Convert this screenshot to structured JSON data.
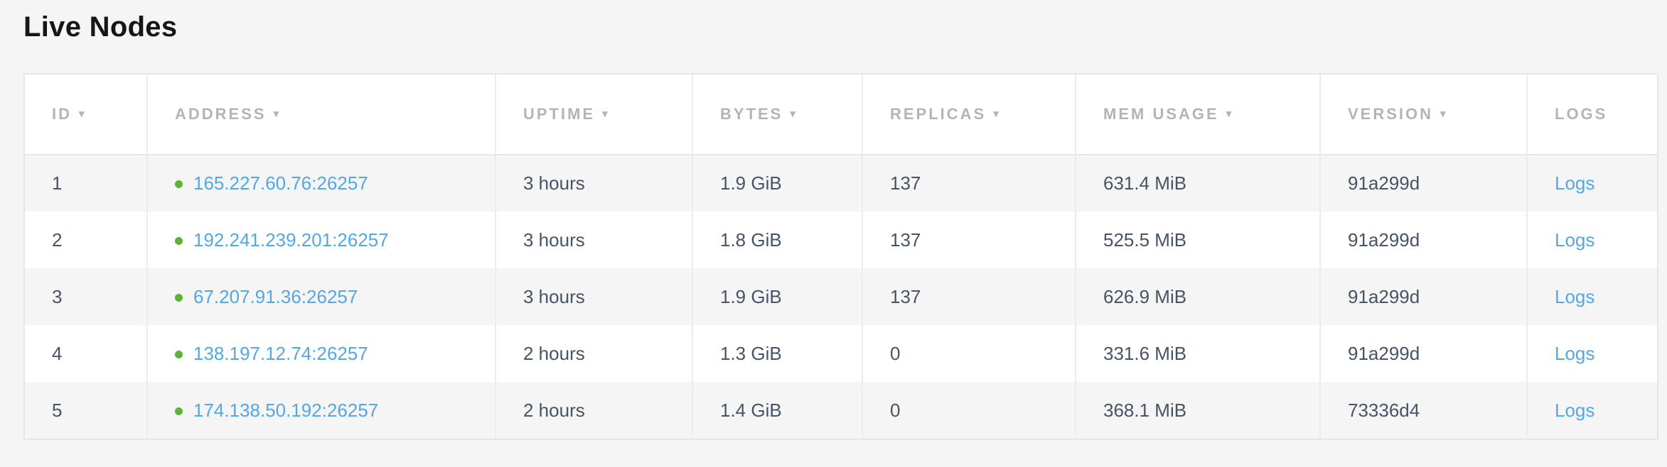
{
  "page": {
    "title": "Live Nodes"
  },
  "table": {
    "sort_icon": "▾",
    "columns": [
      {
        "key": "id",
        "label": "ID",
        "sortable": true
      },
      {
        "key": "address",
        "label": "ADDRESS",
        "sortable": true
      },
      {
        "key": "uptime",
        "label": "UPTIME",
        "sortable": true
      },
      {
        "key": "bytes",
        "label": "BYTES",
        "sortable": true
      },
      {
        "key": "replicas",
        "label": "REPLICAS",
        "sortable": true
      },
      {
        "key": "mem_usage",
        "label": "MEM USAGE",
        "sortable": true
      },
      {
        "key": "version",
        "label": "VERSION",
        "sortable": true
      },
      {
        "key": "logs",
        "label": "LOGS",
        "sortable": false
      }
    ],
    "rows": [
      {
        "id": "1",
        "status": "live",
        "address": "165.227.60.76:26257",
        "uptime": "3 hours",
        "bytes": "1.9 GiB",
        "replicas": "137",
        "mem_usage": "631.4 MiB",
        "version": "91a299d",
        "logs_label": "Logs"
      },
      {
        "id": "2",
        "status": "live",
        "address": "192.241.239.201:26257",
        "uptime": "3 hours",
        "bytes": "1.8 GiB",
        "replicas": "137",
        "mem_usage": "525.5 MiB",
        "version": "91a299d",
        "logs_label": "Logs"
      },
      {
        "id": "3",
        "status": "live",
        "address": "67.207.91.36:26257",
        "uptime": "3 hours",
        "bytes": "1.9 GiB",
        "replicas": "137",
        "mem_usage": "626.9 MiB",
        "version": "91a299d",
        "logs_label": "Logs"
      },
      {
        "id": "4",
        "status": "live",
        "address": "138.197.12.74:26257",
        "uptime": "2 hours",
        "bytes": "1.3 GiB",
        "replicas": "0",
        "mem_usage": "331.6 MiB",
        "version": "91a299d",
        "logs_label": "Logs"
      },
      {
        "id": "5",
        "status": "live",
        "address": "174.138.50.192:26257",
        "uptime": "2 hours",
        "bytes": "1.4 GiB",
        "replicas": "0",
        "mem_usage": "368.1 MiB",
        "version": "73336d4",
        "logs_label": "Logs"
      }
    ]
  },
  "colors": {
    "page_bg": "#f5f5f5",
    "panel_bg": "#ffffff",
    "row_alt_bg": "#f5f5f5",
    "border": "#e6e6e6",
    "header_text": "#b1b5ba",
    "data_text": "#475366",
    "link_blue": "#54a7e6",
    "live_green": "#5cb234",
    "title_text": "#161616"
  }
}
